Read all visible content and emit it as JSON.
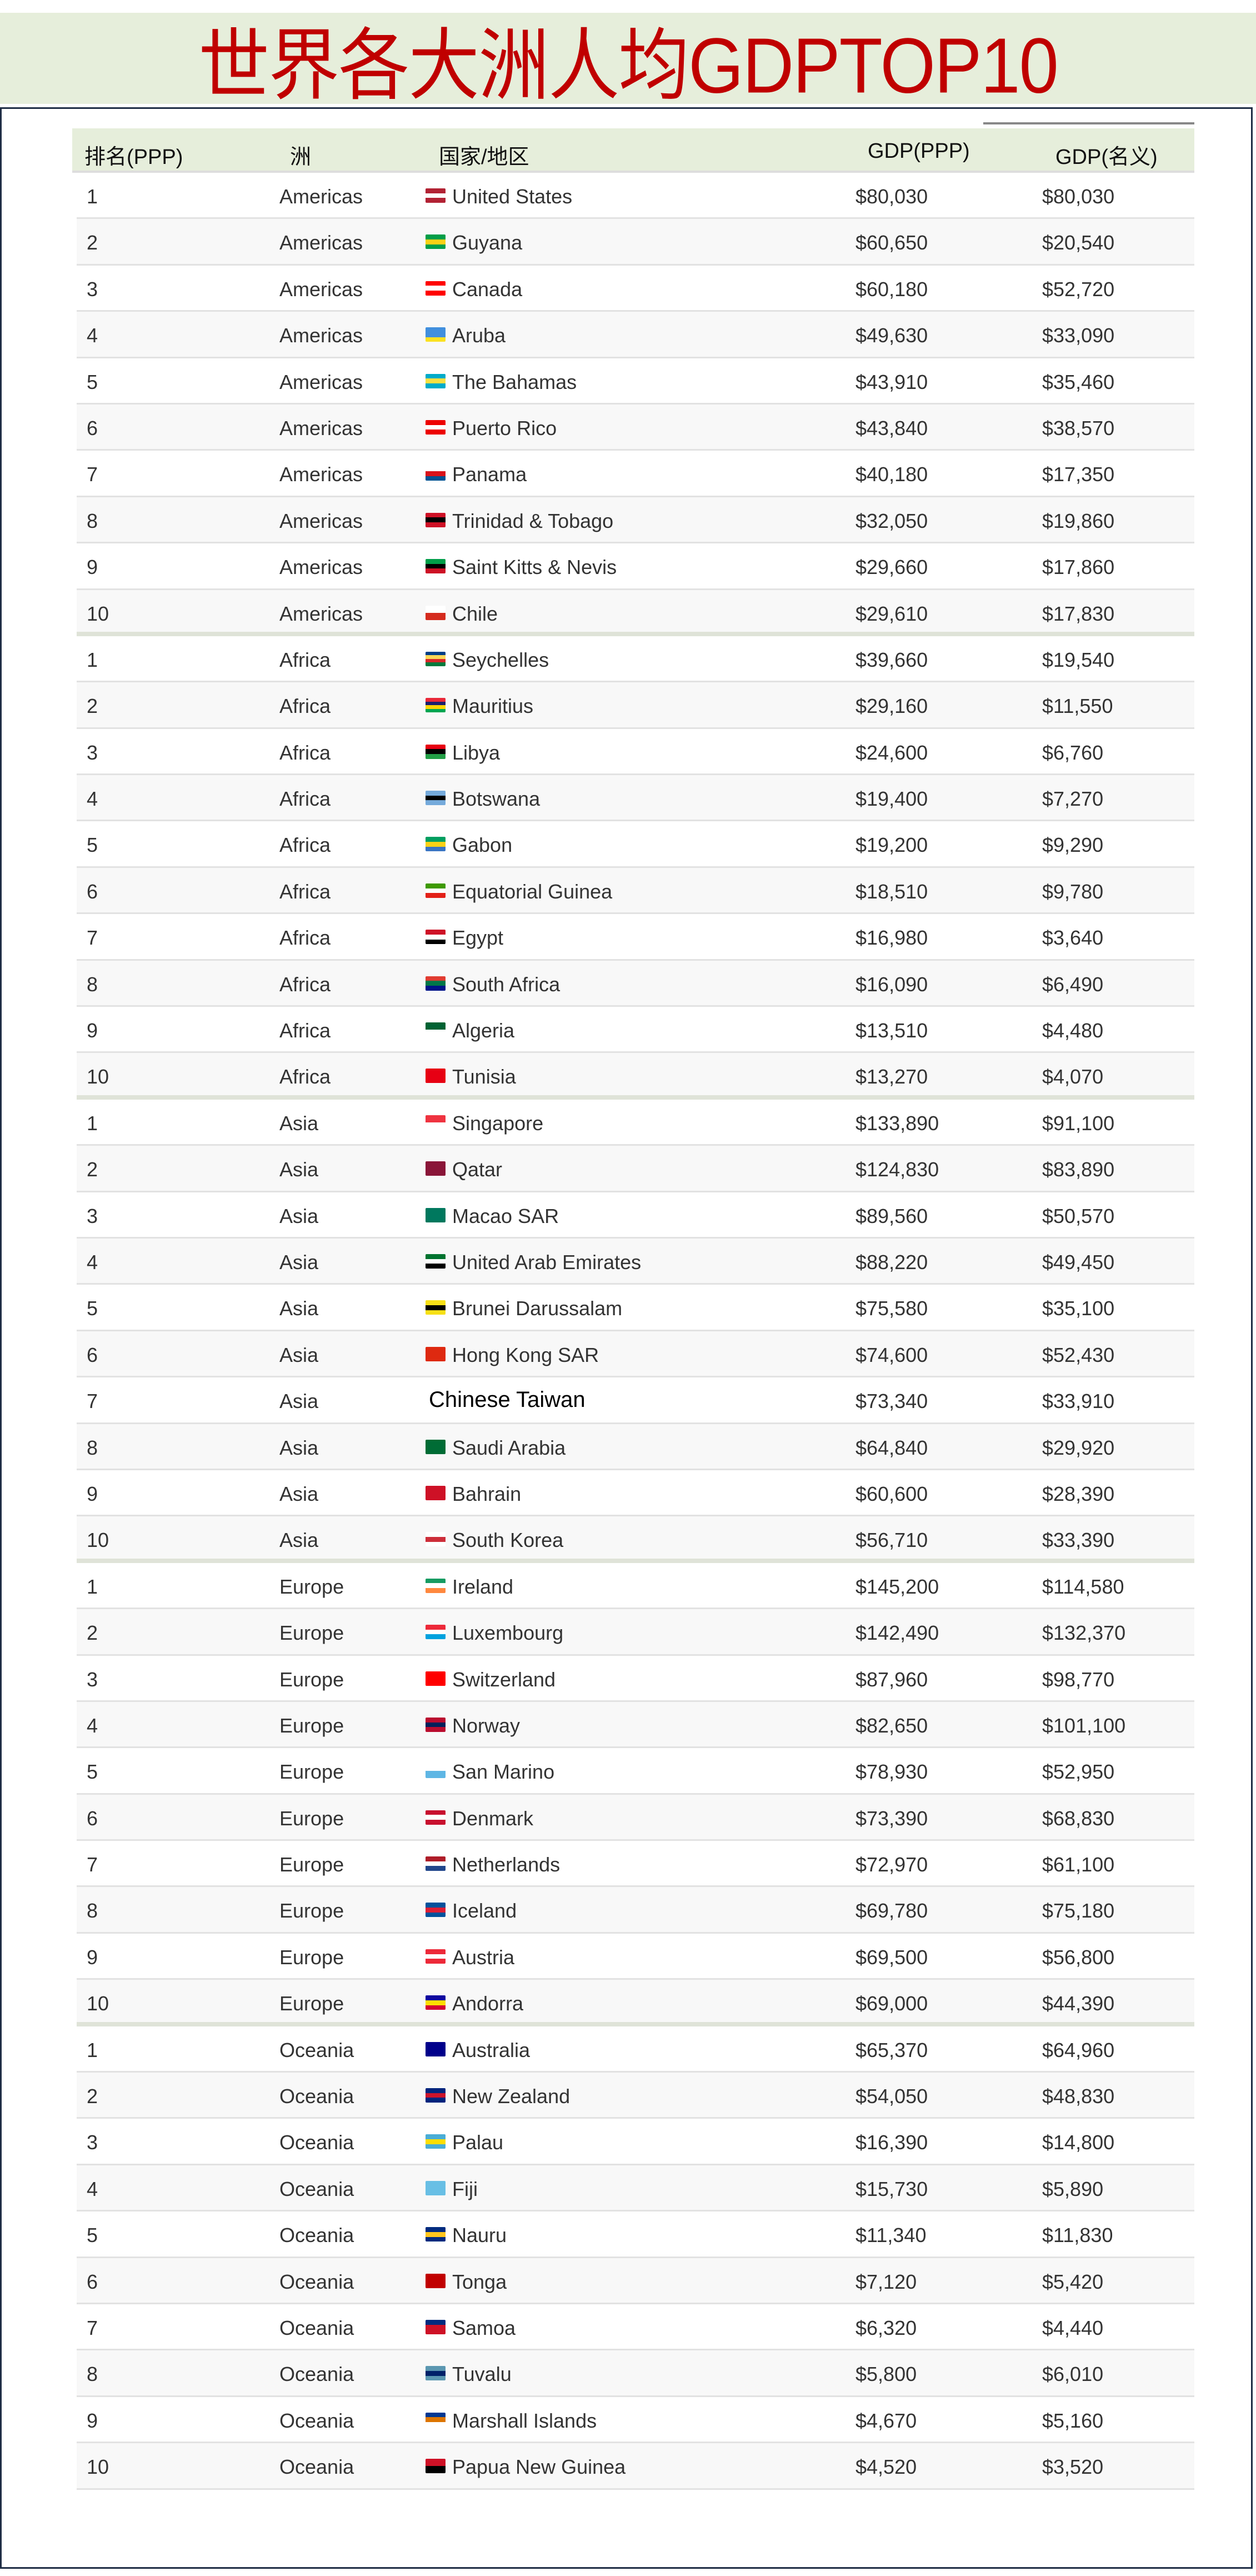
{
  "title": "世界各大洲人均GDPTOP10",
  "headers": {
    "rank": "排名(PPP)",
    "continent": "洲",
    "country": "国家/地区",
    "gdp_ppp": "GDP(PPP)",
    "gdp_nominal": "GDP(名义)"
  },
  "groups": [
    {
      "continent": "Americas",
      "rows": [
        {
          "rank": "1",
          "country": "United States",
          "ppp": "$80,030",
          "nominal": "$80,030",
          "flag": [
            "#b22234",
            "#ffffff",
            "#b22234"
          ]
        },
        {
          "rank": "2",
          "country": "Guyana",
          "ppp": "$60,650",
          "nominal": "$20,540",
          "flag": [
            "#009e49",
            "#fcd116",
            "#009e49"
          ]
        },
        {
          "rank": "3",
          "country": "Canada",
          "ppp": "$60,180",
          "nominal": "$52,720",
          "flag": [
            "#ff0000",
            "#ffffff",
            "#ff0000"
          ]
        },
        {
          "rank": "4",
          "country": "Aruba",
          "ppp": "$49,630",
          "nominal": "$33,090",
          "flag": [
            "#418fde",
            "#418fde",
            "#fbe122"
          ]
        },
        {
          "rank": "5",
          "country": "The Bahamas",
          "ppp": "$43,910",
          "nominal": "$35,460",
          "flag": [
            "#00abc9",
            "#fae042",
            "#00abc9"
          ]
        },
        {
          "rank": "6",
          "country": "Puerto Rico",
          "ppp": "$43,840",
          "nominal": "$38,570",
          "flag": [
            "#ed0000",
            "#ffffff",
            "#ed0000"
          ]
        },
        {
          "rank": "7",
          "country": "Panama",
          "ppp": "$40,180",
          "nominal": "$17,350",
          "flag": [
            "#ffffff",
            "#da121a",
            "#005293"
          ]
        },
        {
          "rank": "8",
          "country": "Trinidad & Tobago",
          "ppp": "$32,050",
          "nominal": "$19,860",
          "flag": [
            "#ce1126",
            "#000000",
            "#ce1126"
          ]
        },
        {
          "rank": "9",
          "country": "Saint Kitts & Nevis",
          "ppp": "$29,660",
          "nominal": "$17,860",
          "flag": [
            "#009e49",
            "#000000",
            "#ce1126"
          ]
        },
        {
          "rank": "10",
          "country": "Chile",
          "ppp": "$29,610",
          "nominal": "$17,830",
          "flag": [
            "#ffffff",
            "#d52b1e"
          ]
        }
      ]
    },
    {
      "continent": "Africa",
      "rows": [
        {
          "rank": "1",
          "country": "Seychelles",
          "ppp": "$39,660",
          "nominal": "$19,540",
          "flag": [
            "#003f87",
            "#fcd856",
            "#d62828",
            "#007a3d"
          ]
        },
        {
          "rank": "2",
          "country": "Mauritius",
          "ppp": "$29,160",
          "nominal": "$11,550",
          "flag": [
            "#ea2839",
            "#1a206d",
            "#ffd500",
            "#00a551"
          ]
        },
        {
          "rank": "3",
          "country": "Libya",
          "ppp": "$24,600",
          "nominal": "$6,760",
          "flag": [
            "#e70013",
            "#000000",
            "#239e46"
          ]
        },
        {
          "rank": "4",
          "country": "Botswana",
          "ppp": "$19,400",
          "nominal": "$7,270",
          "flag": [
            "#75aadb",
            "#000000",
            "#75aadb"
          ]
        },
        {
          "rank": "5",
          "country": "Gabon",
          "ppp": "$19,200",
          "nominal": "$9,290",
          "flag": [
            "#009e60",
            "#fcd116",
            "#3a75c4"
          ]
        },
        {
          "rank": "6",
          "country": "Equatorial Guinea",
          "ppp": "$18,510",
          "nominal": "$9,780",
          "flag": [
            "#3e9a00",
            "#ffffff",
            "#e32118"
          ]
        },
        {
          "rank": "7",
          "country": "Egypt",
          "ppp": "$16,980",
          "nominal": "$3,640",
          "flag": [
            "#ce1126",
            "#ffffff",
            "#000000"
          ]
        },
        {
          "rank": "8",
          "country": "South Africa",
          "ppp": "$16,090",
          "nominal": "$6,490",
          "flag": [
            "#e03c31",
            "#007749",
            "#001489"
          ]
        },
        {
          "rank": "9",
          "country": "Algeria",
          "ppp": "$13,510",
          "nominal": "$4,480",
          "flag": [
            "#006233",
            "#ffffff"
          ]
        },
        {
          "rank": "10",
          "country": "Tunisia",
          "ppp": "$13,270",
          "nominal": "$4,070",
          "flag": [
            "#e70013"
          ]
        }
      ]
    },
    {
      "continent": "Asia",
      "rows": [
        {
          "rank": "1",
          "country": "Singapore",
          "ppp": "$133,890",
          "nominal": "$91,100",
          "flag": [
            "#ef3340",
            "#ffffff"
          ]
        },
        {
          "rank": "2",
          "country": "Qatar",
          "ppp": "$124,830",
          "nominal": "$83,890",
          "flag": [
            "#8a1538"
          ]
        },
        {
          "rank": "3",
          "country": "Macao SAR",
          "ppp": "$89,560",
          "nominal": "$50,570",
          "flag": [
            "#00785e"
          ]
        },
        {
          "rank": "4",
          "country": "United Arab Emirates",
          "ppp": "$88,220",
          "nominal": "$49,450",
          "flag": [
            "#00732f",
            "#ffffff",
            "#000000"
          ]
        },
        {
          "rank": "5",
          "country": "Brunei Darussalam",
          "ppp": "$75,580",
          "nominal": "$35,100",
          "flag": [
            "#f7e017",
            "#000000",
            "#f7e017"
          ]
        },
        {
          "rank": "6",
          "country": "Hong Kong SAR",
          "ppp": "$74,600",
          "nominal": "$52,430",
          "flag": [
            "#de2910"
          ]
        },
        {
          "rank": "7",
          "country": "Chinese Taiwan",
          "ppp": "$73,340",
          "nominal": "$33,910",
          "flag": []
        },
        {
          "rank": "8",
          "country": "Saudi Arabia",
          "ppp": "$64,840",
          "nominal": "$29,920",
          "flag": [
            "#006c35"
          ]
        },
        {
          "rank": "9",
          "country": "Bahrain",
          "ppp": "$60,600",
          "nominal": "$28,390",
          "flag": [
            "#ce1126"
          ]
        },
        {
          "rank": "10",
          "country": "South Korea",
          "ppp": "$56,710",
          "nominal": "$33,390",
          "flag": [
            "#ffffff",
            "#cd2e3a",
            "#ffffff"
          ]
        }
      ]
    },
    {
      "continent": "Europe",
      "rows": [
        {
          "rank": "1",
          "country": "Ireland",
          "ppp": "$145,200",
          "nominal": "$114,580",
          "flag": [
            "#169b62",
            "#ffffff",
            "#ff883e"
          ]
        },
        {
          "rank": "2",
          "country": "Luxembourg",
          "ppp": "$142,490",
          "nominal": "$132,370",
          "flag": [
            "#ed2939",
            "#ffffff",
            "#00a1de"
          ]
        },
        {
          "rank": "3",
          "country": "Switzerland",
          "ppp": "$87,960",
          "nominal": "$98,770",
          "flag": [
            "#ff0000"
          ]
        },
        {
          "rank": "4",
          "country": "Norway",
          "ppp": "$82,650",
          "nominal": "$101,100",
          "flag": [
            "#ba0c2f",
            "#00205b",
            "#ba0c2f"
          ]
        },
        {
          "rank": "5",
          "country": "San Marino",
          "ppp": "$78,930",
          "nominal": "$52,950",
          "flag": [
            "#ffffff",
            "#5eb6e4"
          ]
        },
        {
          "rank": "6",
          "country": "Denmark",
          "ppp": "$73,390",
          "nominal": "$68,830",
          "flag": [
            "#c8102e",
            "#ffffff",
            "#c8102e"
          ]
        },
        {
          "rank": "7",
          "country": "Netherlands",
          "ppp": "$72,970",
          "nominal": "$61,100",
          "flag": [
            "#ae1c28",
            "#ffffff",
            "#21468b"
          ]
        },
        {
          "rank": "8",
          "country": "Iceland",
          "ppp": "$69,780",
          "nominal": "$75,180",
          "flag": [
            "#02529c",
            "#dc1e35",
            "#02529c"
          ]
        },
        {
          "rank": "9",
          "country": "Austria",
          "ppp": "$69,500",
          "nominal": "$56,800",
          "flag": [
            "#ed2939",
            "#ffffff",
            "#ed2939"
          ]
        },
        {
          "rank": "10",
          "country": "Andorra",
          "ppp": "$69,000",
          "nominal": "$44,390",
          "flag": [
            "#10069f",
            "#fedd00",
            "#d50032"
          ]
        }
      ]
    },
    {
      "continent": "Oceania",
      "rows": [
        {
          "rank": "1",
          "country": "Australia",
          "ppp": "$65,370",
          "nominal": "$64,960",
          "flag": [
            "#00008b"
          ]
        },
        {
          "rank": "2",
          "country": "New Zealand",
          "ppp": "$54,050",
          "nominal": "$48,830",
          "flag": [
            "#00247d",
            "#cc142b",
            "#00247d"
          ]
        },
        {
          "rank": "3",
          "country": "Palau",
          "ppp": "$16,390",
          "nominal": "$14,800",
          "flag": [
            "#4aadd6",
            "#ffde00",
            "#4aadd6"
          ]
        },
        {
          "rank": "4",
          "country": "Fiji",
          "ppp": "$15,730",
          "nominal": "$5,890",
          "flag": [
            "#68bfe5"
          ]
        },
        {
          "rank": "5",
          "country": "Nauru",
          "ppp": "$11,340",
          "nominal": "$11,830",
          "flag": [
            "#002b7f",
            "#ffc61e",
            "#002b7f"
          ]
        },
        {
          "rank": "6",
          "country": "Tonga",
          "ppp": "$7,120",
          "nominal": "$5,420",
          "flag": [
            "#c10000"
          ]
        },
        {
          "rank": "7",
          "country": "Samoa",
          "ppp": "$6,320",
          "nominal": "$4,440",
          "flag": [
            "#002b7f",
            "#ce1126",
            "#ce1126"
          ]
        },
        {
          "rank": "8",
          "country": "Tuvalu",
          "ppp": "$5,800",
          "nominal": "$6,010",
          "flag": [
            "#5b97b1",
            "#012169",
            "#5b97b1"
          ]
        },
        {
          "rank": "9",
          "country": "Marshall Islands",
          "ppp": "$4,670",
          "nominal": "$5,160",
          "flag": [
            "#003893",
            "#dd7500",
            "#ffffff"
          ]
        },
        {
          "rank": "10",
          "country": "Papua New Guinea",
          "ppp": "$4,520",
          "nominal": "$3,520",
          "flag": [
            "#ce1126",
            "#000000"
          ]
        }
      ]
    }
  ]
}
